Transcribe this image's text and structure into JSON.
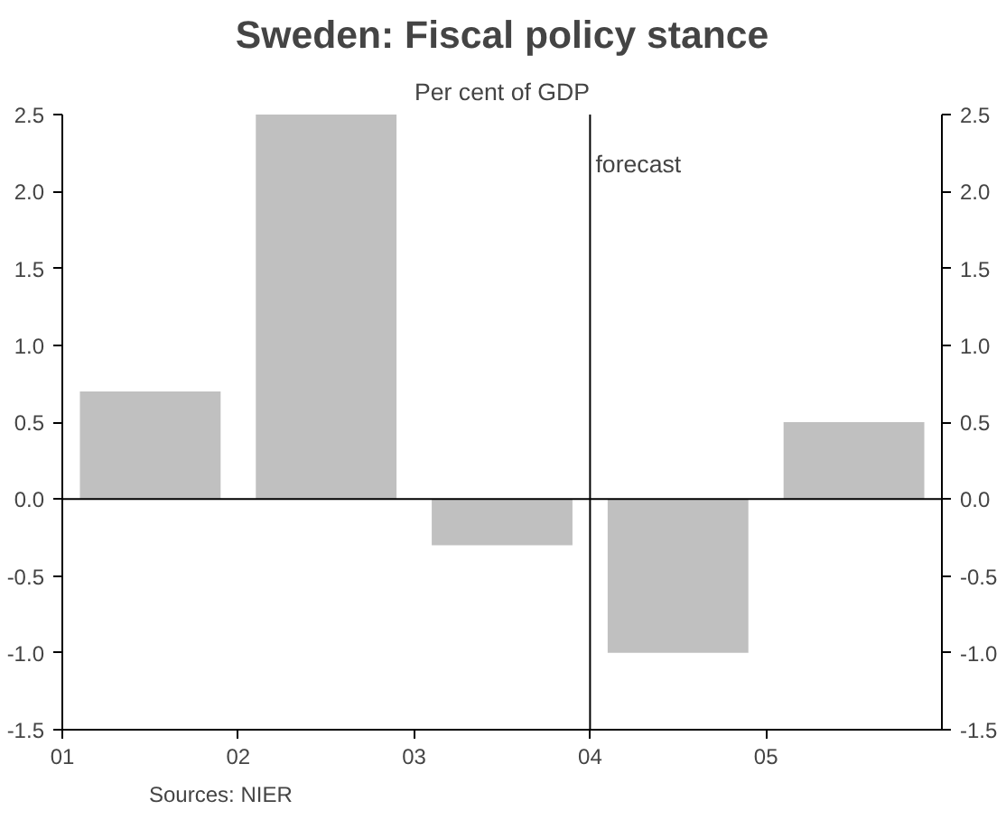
{
  "chart_data": {
    "type": "bar",
    "title": "Sweden: Fiscal policy stance",
    "subtitle": "Per cent of GDP",
    "x": [
      2001.5,
      2002.5,
      2003.5,
      2004.5,
      2005.5
    ],
    "values": [
      0.7,
      2.5,
      -0.3,
      -1.0,
      0.5
    ],
    "color": "#c0c0c0",
    "xlim": [
      2001,
      2006
    ],
    "xticks": [
      {
        "value": 2001,
        "label": "01"
      },
      {
        "value": 2002,
        "label": "02"
      },
      {
        "value": 2003,
        "label": "03"
      },
      {
        "value": 2004,
        "label": "04"
      },
      {
        "value": 2005,
        "label": "05"
      }
    ],
    "ylim": [
      -1.5,
      2.5
    ],
    "yticks": [
      {
        "value": -1.5,
        "label": "-1.5"
      },
      {
        "value": -1.0,
        "label": "-1.0"
      },
      {
        "value": -0.5,
        "label": "-0.5"
      },
      {
        "value": 0,
        "label": "0.0"
      },
      {
        "value": 0.5,
        "label": "0.5"
      },
      {
        "value": 1.0,
        "label": "1.0"
      },
      {
        "value": 1.5,
        "label": "1.5"
      },
      {
        "value": 2.0,
        "label": "2.0"
      },
      {
        "value": 2.5,
        "label": "2.5"
      }
    ],
    "y2lim": [
      -1.5,
      2.5
    ],
    "y2ticks": [
      {
        "value": -1.5,
        "label": "-1.5"
      },
      {
        "value": -1.0,
        "label": "-1.0"
      },
      {
        "value": -0.5,
        "label": "-0.5"
      },
      {
        "value": 0,
        "label": "0.0"
      },
      {
        "value": 0.5,
        "label": "0.5"
      },
      {
        "value": 1.0,
        "label": "1.0"
      },
      {
        "value": 1.5,
        "label": "1.5"
      },
      {
        "value": 2.0,
        "label": "2.0"
      },
      {
        "value": 2.5,
        "label": "2.5"
      }
    ],
    "ref_lines": [
      {
        "axis": "y",
        "value": 0,
        "label": null,
        "color": "#000000"
      },
      {
        "axis": "x",
        "value": 2004,
        "label": "forecast",
        "color": "#000000"
      }
    ],
    "annotations": [
      "Sources: NIER"
    ],
    "grid": false
  }
}
